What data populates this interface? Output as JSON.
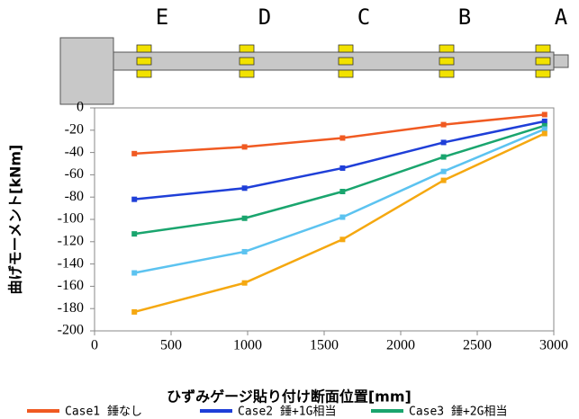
{
  "diagram": {
    "labels": [
      "E",
      "D",
      "C",
      "B",
      "A"
    ]
  },
  "chart_data": {
    "type": "line",
    "x_label": "ひずみゲージ貼り付け断面位置[mm]",
    "y_label": "曲げモーメント[kNm]",
    "x": [
      260,
      980,
      1620,
      2280,
      2940
    ],
    "series": [
      {
        "name": "Case1 錘なし",
        "color": "#f05a22",
        "values": [
          -41,
          -35,
          -27,
          -15,
          -6
        ]
      },
      {
        "name": "Case2 錘+1G相当",
        "color": "#1f3fd8",
        "values": [
          -82,
          -72,
          -54,
          -31,
          -12
        ]
      },
      {
        "name": "Case3 錘+2G相当",
        "color": "#1aa56e",
        "values": [
          -113,
          -99,
          -75,
          -44,
          -16
        ]
      },
      {
        "color": "#5cc3f0",
        "values": [
          -148,
          -129,
          -98,
          -57,
          -19
        ]
      },
      {
        "color": "#f5a810",
        "values": [
          -183,
          -157,
          -118,
          -65,
          -23
        ]
      }
    ],
    "xlim": [
      0,
      3000
    ],
    "xticks": [
      0,
      500,
      1000,
      1500,
      2000,
      2500,
      3000
    ],
    "ylim": [
      -200,
      0
    ],
    "yticks": [
      0,
      -20,
      -40,
      -60,
      -80,
      -100,
      -120,
      -140,
      -160,
      -180,
      -200
    ]
  }
}
